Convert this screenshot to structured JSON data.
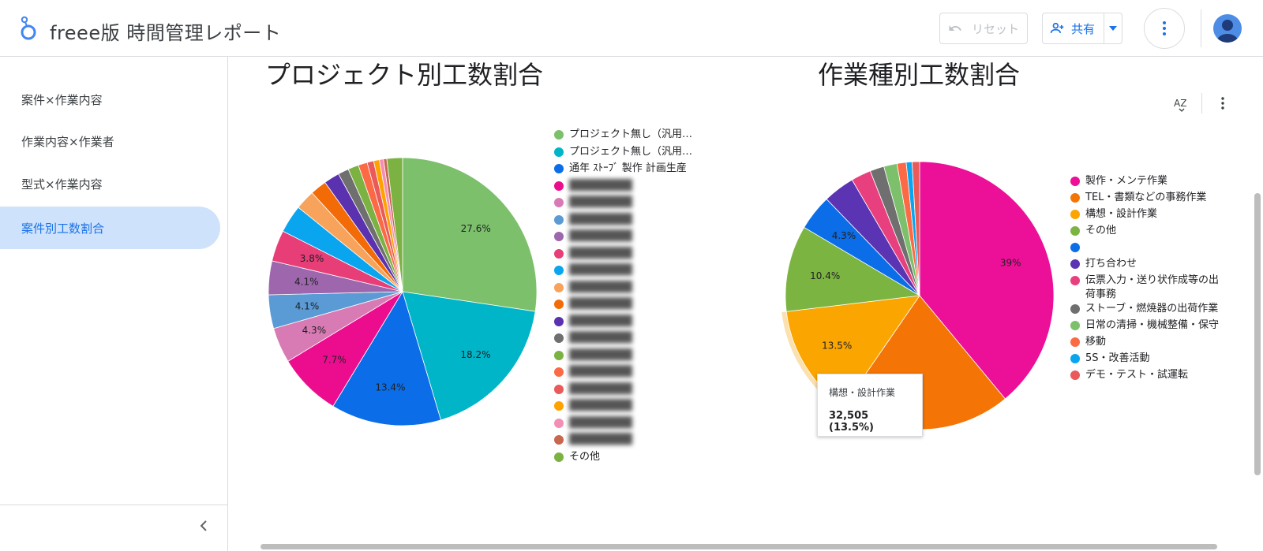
{
  "header": {
    "title": "freee版 時間管理レポート",
    "reset_label": "リセット",
    "share_label": "共有"
  },
  "sidebar": {
    "items": [
      {
        "label": "案件×作業内容"
      },
      {
        "label": "作業内容×作業者"
      },
      {
        "label": "型式×作業内容"
      },
      {
        "label": "案件別工数割合"
      }
    ],
    "active_index": 3
  },
  "colors": {
    "accent": "#1a73e8",
    "active_nav_bg": "#cfe2fb"
  },
  "chart_data": [
    {
      "type": "pie",
      "title": "プロジェクト別工数割合",
      "slices": [
        {
          "label": "プロジェクト無し（汎用…",
          "value": 27.6,
          "color": "#7cc06b",
          "blurred": false
        },
        {
          "label": "プロジェクト無し（汎用…",
          "value": 18.2,
          "color": "#00b5c8",
          "blurred": false
        },
        {
          "label": "通年 ｽﾄｰﾌﾞ 製作 計画生産",
          "value": 13.4,
          "color": "#0b6ee8",
          "blurred": false
        },
        {
          "label": "",
          "value": 7.7,
          "color": "#ec0d8f",
          "blurred": true
        },
        {
          "label": "",
          "value": 4.3,
          "color": "#d87bb4",
          "blurred": true
        },
        {
          "label": "",
          "value": 4.1,
          "color": "#5b9bd5",
          "blurred": true
        },
        {
          "label": "",
          "value": 4.1,
          "color": "#9e66ad",
          "blurred": true
        },
        {
          "label": "",
          "value": 3.8,
          "color": "#e73e78",
          "blurred": true
        },
        {
          "label": "",
          "value": 3.4,
          "color": "#0aa5ef",
          "blurred": true
        },
        {
          "label": "",
          "value": 2.4,
          "color": "#f7a35c",
          "blurred": true
        },
        {
          "label": "",
          "value": 2.0,
          "color": "#f26b07",
          "blurred": true
        },
        {
          "label": "",
          "value": 1.9,
          "color": "#5a31ae",
          "blurred": true
        },
        {
          "label": "",
          "value": 1.3,
          "color": "#6f6f6f",
          "blurred": true
        },
        {
          "label": "",
          "value": 1.3,
          "color": "#7bb241",
          "blurred": true
        },
        {
          "label": "",
          "value": 1.1,
          "color": "#fb6a45",
          "blurred": true
        },
        {
          "label": "",
          "value": 0.8,
          "color": "#ea5a5a",
          "blurred": true
        },
        {
          "label": "",
          "value": 0.7,
          "color": "#ffa200",
          "blurred": true
        },
        {
          "label": "",
          "value": 0.5,
          "color": "#f48eb4",
          "blurred": true
        },
        {
          "label": "",
          "value": 0.4,
          "color": "#c8664e",
          "blurred": true
        },
        {
          "label": "その他",
          "value": 1.9,
          "color": "#7bb241",
          "blurred": false
        }
      ]
    },
    {
      "type": "pie",
      "title": "作業種別工数割合",
      "slices": [
        {
          "label": "製作・メンテ作業",
          "value": 39.0,
          "color": "#ec0f97",
          "blurred": false
        },
        {
          "label": "TEL・書類などの事務作業",
          "value": 20.6,
          "color": "#f47505",
          "blurred": false
        },
        {
          "label": "構想・設計作業",
          "value": 13.5,
          "color": "#fba500",
          "blurred": false
        },
        {
          "label": "その他",
          "value": 10.4,
          "color": "#7cb442",
          "blurred": false
        },
        {
          "label": "",
          "value": 4.3,
          "color": "#0b6ee8",
          "blurred": false
        },
        {
          "label": "打ち合わせ",
          "value": 3.8,
          "color": "#5b34b3",
          "blurred": false
        },
        {
          "label": "伝票入力・送り状作成等の出荷事務",
          "value": 2.4,
          "color": "#e8407e",
          "blurred": false
        },
        {
          "label": "ストーブ・燃焼器の出荷作業",
          "value": 1.7,
          "color": "#6f6f6f",
          "blurred": false
        },
        {
          "label": "日常の清掃・機械整備・保守",
          "value": 1.6,
          "color": "#7cc06b",
          "blurred": false
        },
        {
          "label": "移動",
          "value": 1.1,
          "color": "#fb6a45",
          "blurred": false
        },
        {
          "label": "5S・改善活動",
          "value": 0.7,
          "color": "#0aa5ef",
          "blurred": false
        },
        {
          "label": "デモ・テスト・試運転",
          "value": 0.9,
          "color": "#ea5a5a",
          "blurred": false
        }
      ],
      "visible_labels": [
        "39%",
        "10.4%",
        "13.5%",
        "4.3%",
        "%"
      ],
      "tooltip": {
        "label": "構想・設計作業",
        "value": "32,505 (13.5%)"
      }
    }
  ]
}
